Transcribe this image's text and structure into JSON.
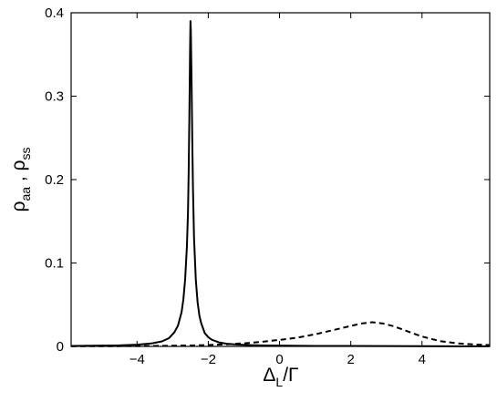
{
  "chart_data": {
    "type": "line",
    "title": "",
    "xlabel": {
      "parts": [
        {
          "text": "Δ",
          "sub": false
        },
        {
          "text": "L",
          "sub": true
        },
        {
          "text": "/Γ",
          "sub": false
        }
      ]
    },
    "ylabel": {
      "parts": [
        {
          "text": "ρ",
          "sub": false
        },
        {
          "text": "aa",
          "sub": true
        },
        {
          "text": " , ρ",
          "sub": false
        },
        {
          "text": "ss",
          "sub": true
        }
      ]
    },
    "xlim": [
      -5.85,
      5.9
    ],
    "ylim": [
      0,
      0.4
    ],
    "xticks": [
      -4,
      -2,
      0,
      2,
      4
    ],
    "xtick_labels": [
      "−4",
      "−2",
      "0",
      "2",
      "4"
    ],
    "yticks": [
      0,
      0.1,
      0.2,
      0.3,
      0.4
    ],
    "ytick_labels": [
      "0",
      "0.1",
      "0.2",
      "0.3",
      "0.4"
    ],
    "grid": false,
    "legend": "none",
    "colors": {
      "line": "#000000",
      "axes": "#000000",
      "background": "#ffffff"
    },
    "series": [
      {
        "style": "solid",
        "x": [
          -5.85,
          -5.0,
          -4.5,
          -4.0,
          -3.6,
          -3.3,
          -3.1,
          -2.95,
          -2.85,
          -2.75,
          -2.7,
          -2.65,
          -2.6,
          -2.57,
          -2.55,
          -2.53,
          -2.51,
          -2.5,
          -2.49,
          -2.47,
          -2.45,
          -2.43,
          -2.4,
          -2.35,
          -2.3,
          -2.25,
          -2.2,
          -2.1,
          -2.0,
          -1.9,
          -1.7,
          -1.5,
          -1.2,
          -0.8,
          -0.4,
          0.0,
          1.0,
          2.0,
          3.0,
          4.0,
          5.0,
          5.9
        ],
        "y": [
          0.0006,
          0.0009,
          0.0012,
          0.0021,
          0.0035,
          0.006,
          0.01,
          0.017,
          0.025,
          0.041,
          0.056,
          0.08,
          0.12,
          0.16,
          0.21,
          0.28,
          0.36,
          0.39,
          0.38,
          0.32,
          0.25,
          0.19,
          0.13,
          0.08,
          0.053,
          0.037,
          0.028,
          0.016,
          0.011,
          0.008,
          0.0048,
          0.0033,
          0.0022,
          0.0015,
          0.0011,
          0.0009,
          0.0006,
          0.0005,
          0.0004,
          0.0003,
          0.0002,
          0.0002
        ]
      },
      {
        "style": "dashed",
        "x": [
          -5.85,
          -4.0,
          -3.0,
          -2.5,
          -2.0,
          -1.5,
          -1.0,
          -0.5,
          0.0,
          0.5,
          1.0,
          1.5,
          2.0,
          2.3,
          2.6,
          2.9,
          3.2,
          3.5,
          4.0,
          4.5,
          5.0,
          5.5,
          5.9
        ],
        "y": [
          0.0002,
          0.0004,
          0.0008,
          0.0011,
          0.0017,
          0.0025,
          0.0037,
          0.0055,
          0.0078,
          0.0105,
          0.0145,
          0.0195,
          0.0245,
          0.0275,
          0.029,
          0.0275,
          0.0242,
          0.0195,
          0.0118,
          0.0064,
          0.0036,
          0.0022,
          0.0016
        ]
      }
    ]
  }
}
